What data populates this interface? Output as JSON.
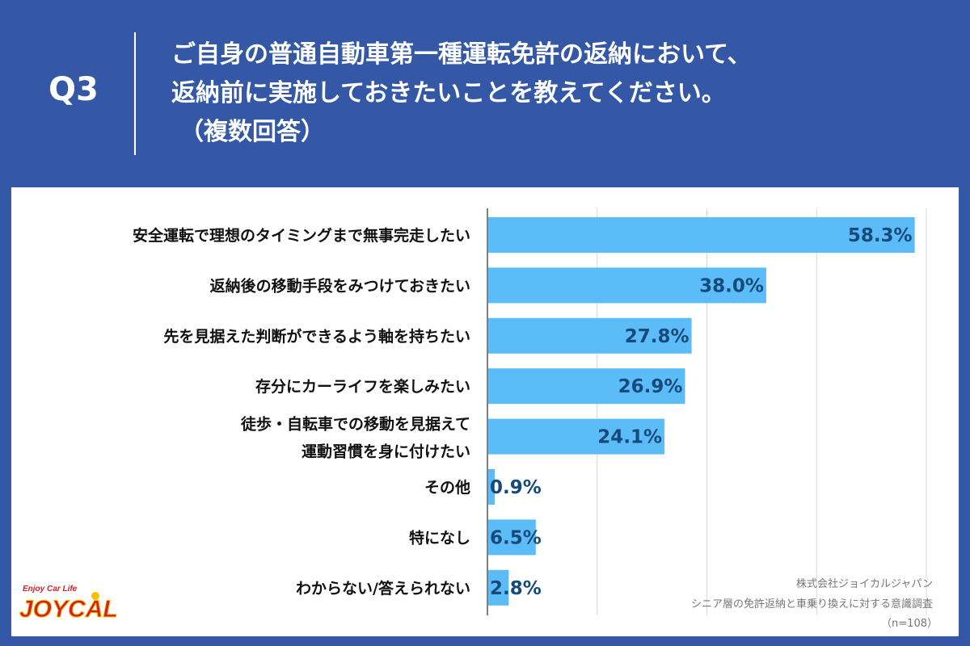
{
  "header": {
    "q_label": "Q3",
    "question_lines": [
      "ご自身の普通自動車第一種運転免許の返納において、",
      "返納前に実施しておきたいことを教えてください。",
      "（複数回答）"
    ]
  },
  "chart_data": {
    "type": "bar",
    "orientation": "horizontal",
    "categories": [
      [
        "安全運転で理想のタイミングまで無事完走したい"
      ],
      [
        "返納後の移動手段をみつけておきたい"
      ],
      [
        "先を見据えた判断ができるよう軸を持ちたい"
      ],
      [
        "存分にカーライフを楽しみたい"
      ],
      [
        "徒歩・自転車での移動を見据えて",
        "運動習慣を身に付けたい"
      ],
      [
        "その他"
      ],
      [
        "特になし"
      ],
      [
        "わからない/答えられない"
      ]
    ],
    "values": [
      58.3,
      38.0,
      27.8,
      26.9,
      24.1,
      0.9,
      6.5,
      2.8
    ],
    "value_labels": [
      "58.3%",
      "38.0%",
      "27.8%",
      "26.9%",
      "24.1%",
      "0.9%",
      "6.5%",
      "2.8%"
    ],
    "xlim": [
      0,
      60
    ],
    "grid": true,
    "bar_color": "#5bbcf8"
  },
  "footer": {
    "source_lines": [
      "株式会社ジョイカルジャパン",
      "シニア層の免許返納と車乗り換えに対する意識調査",
      "（n=108）"
    ],
    "logo_tagline": "Enjoy Car Life",
    "logo_text": "JOYCAL"
  },
  "colors": {
    "background": "#3458a6",
    "bar": "#5bbcf8",
    "value_text": "#164a7a"
  }
}
